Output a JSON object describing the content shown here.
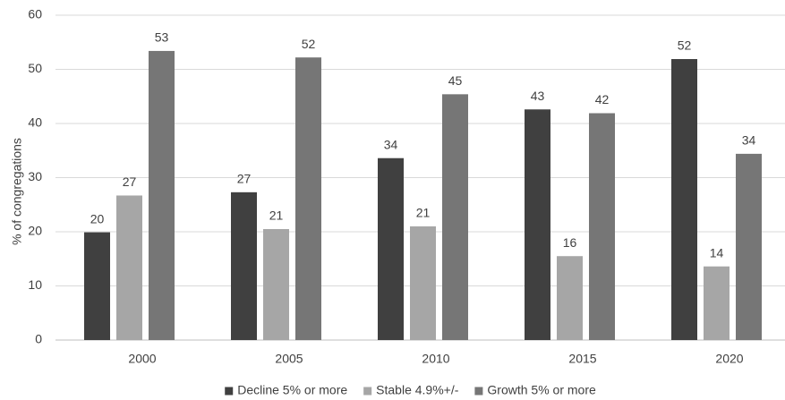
{
  "chart_data": {
    "type": "bar",
    "title": "",
    "xlabel": "",
    "ylabel": "% of congregations",
    "ylim": [
      0,
      60
    ],
    "yticks": [
      0,
      10,
      20,
      30,
      40,
      50,
      60
    ],
    "grid": true,
    "legend_position": "bottom",
    "categories": [
      "2000",
      "2005",
      "2010",
      "2015",
      "2020"
    ],
    "series": [
      {
        "name": "Decline 5% or more",
        "color": "#404040",
        "values": [
          19.9,
          27.3,
          33.6,
          42.6,
          51.9
        ],
        "labels": [
          "20",
          "27",
          "34",
          "43",
          "52"
        ]
      },
      {
        "name": "Stable 4.9%+/-",
        "color": "#a6a6a6",
        "values": [
          26.7,
          20.5,
          21.0,
          15.5,
          13.6
        ],
        "labels": [
          "27",
          "21",
          "21",
          "16",
          "14"
        ]
      },
      {
        "name": "Growth 5% or more",
        "color": "#767676",
        "values": [
          53.4,
          52.2,
          45.4,
          41.9,
          34.4
        ],
        "labels": [
          "53",
          "52",
          "45",
          "42",
          "34"
        ]
      }
    ]
  }
}
